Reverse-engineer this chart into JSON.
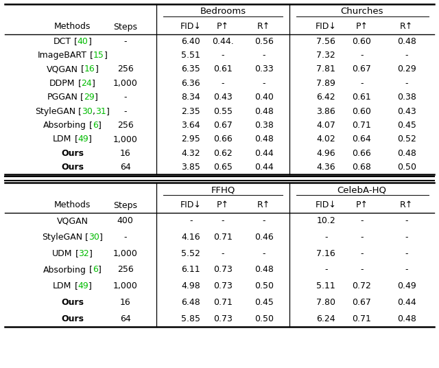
{
  "table1": {
    "group1_label": "Bedrooms",
    "group2_label": "Churches",
    "rows": [
      {
        "method": "DCT",
        "ref": "[40]",
        "steps": "-",
        "d": [
          "6.40",
          "0.44.",
          "0.56",
          "7.56",
          "0.60",
          "0.48"
        ],
        "bold": false
      },
      {
        "method": "ImageBART",
        "ref": "[15]",
        "steps": "",
        "d": [
          "5.51",
          "-",
          "-",
          "7.32",
          "-",
          "-"
        ],
        "bold": false
      },
      {
        "method": "VQGAN",
        "ref": "[16]",
        "steps": "256",
        "d": [
          "6.35",
          "0.61",
          "0.33",
          "7.81",
          "0.67",
          "0.29"
        ],
        "bold": false
      },
      {
        "method": "DDPM",
        "ref": "[24]",
        "steps": "1,000",
        "d": [
          "6.36",
          "-",
          "-",
          "7.89",
          "-",
          "-"
        ],
        "bold": false
      },
      {
        "method": "PGGAN",
        "ref": "[29]",
        "steps": "-",
        "d": [
          "8.34",
          "0.43",
          "0.40",
          "6.42",
          "0.61",
          "0.38"
        ],
        "bold": false
      },
      {
        "method": "StyleGAN",
        "ref": "[30,31]",
        "steps": "-",
        "d": [
          "2.35",
          "0.55",
          "0.48",
          "3.86",
          "0.60",
          "0.43"
        ],
        "bold": false
      },
      {
        "method": "Absorbing",
        "ref": "[6]",
        "steps": "256",
        "d": [
          "3.64",
          "0.67",
          "0.38",
          "4.07",
          "0.71",
          "0.45"
        ],
        "bold": false
      },
      {
        "method": "LDM",
        "ref": "[49]",
        "steps": "1,000",
        "d": [
          "2.95",
          "0.66",
          "0.48",
          "4.02",
          "0.64",
          "0.52"
        ],
        "bold": false
      },
      {
        "method": "Ours",
        "ref": "",
        "steps": "16",
        "d": [
          "4.32",
          "0.62",
          "0.44",
          "4.96",
          "0.66",
          "0.48"
        ],
        "bold": true
      },
      {
        "method": "Ours",
        "ref": "",
        "steps": "64",
        "d": [
          "3.85",
          "0.65",
          "0.44",
          "4.36",
          "0.68",
          "0.50"
        ],
        "bold": true
      }
    ]
  },
  "table2": {
    "group1_label": "FFHQ",
    "group2_label": "CelebA-HQ",
    "rows": [
      {
        "method": "VQGAN",
        "ref": "",
        "steps": "400",
        "d": [
          "-",
          "-",
          "-",
          "10.2",
          "-",
          "-"
        ],
        "bold": false
      },
      {
        "method": "StyleGAN",
        "ref": "[30]",
        "steps": "-",
        "d": [
          "4.16",
          "0.71",
          "0.46",
          "-",
          "-",
          "-"
        ],
        "bold": false
      },
      {
        "method": "UDM",
        "ref": "[32]",
        "steps": "1,000",
        "d": [
          "5.52",
          "-",
          "-",
          "7.16",
          "-",
          "-"
        ],
        "bold": false
      },
      {
        "method": "Absorbing",
        "ref": "[6]",
        "steps": "256",
        "d": [
          "6.11",
          "0.73",
          "0.48",
          "-",
          "-",
          "-"
        ],
        "bold": false
      },
      {
        "method": "LDM",
        "ref": "[49]",
        "steps": "1,000",
        "d": [
          "4.98",
          "0.73",
          "0.50",
          "5.11",
          "0.72",
          "0.49"
        ],
        "bold": false
      },
      {
        "method": "Ours",
        "ref": "",
        "steps": "16",
        "d": [
          "6.48",
          "0.71",
          "0.45",
          "7.80",
          "0.67",
          "0.44"
        ],
        "bold": true
      },
      {
        "method": "Ours",
        "ref": "",
        "steps": "64",
        "d": [
          "5.85",
          "0.73",
          "0.50",
          "6.24",
          "0.71",
          "0.48"
        ],
        "bold": true
      }
    ]
  },
  "ref_color": "#00bb00",
  "text_color": "#000000",
  "bg_color": "#ffffff",
  "line_color": "#000000",
  "fs": 9.0,
  "fs_header": 9.5
}
